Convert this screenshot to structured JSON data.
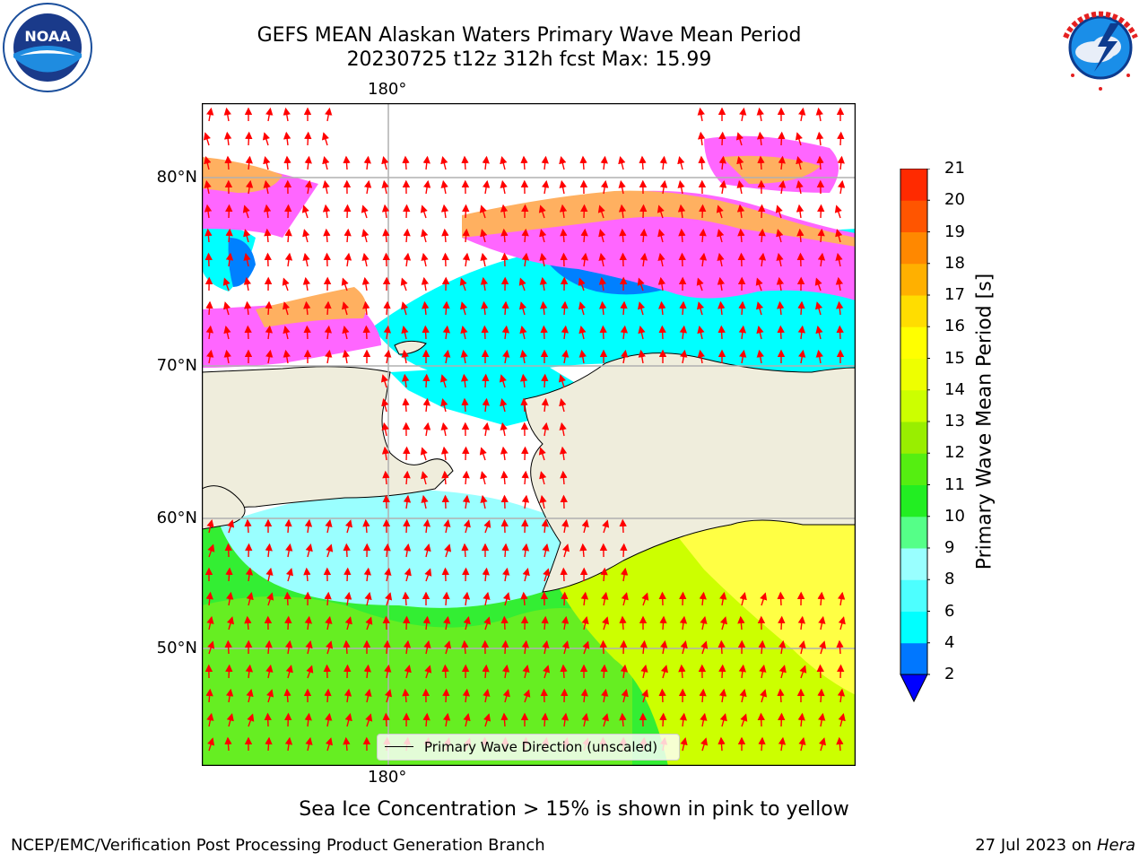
{
  "header": {
    "title_line1": "GEFS MEAN Alaskan Waters Primary Wave Mean Period",
    "title_line2": "20230725 t12z 312h fcst   Max: 15.99"
  },
  "map": {
    "x_tick_label": "180°",
    "y_tick_labels": [
      "80°N",
      "70°N",
      "60°N",
      "50°N"
    ],
    "legend_label": "Primary Wave Direction (unscaled)",
    "colors": {
      "land": "#efeddc",
      "ice_white": "#ffffff",
      "ice_pink": "#ff66ff",
      "ice_orange": "#ffb060",
      "cyan": "#00ffff",
      "light_cyan": "#9affff",
      "blue": "#0080ff",
      "green_light": "#4dff88",
      "green": "#33ee33",
      "yellow_green": "#ccff00",
      "yellow": "#ffff00",
      "arrow": "#ff0000",
      "grid": "#b0b0b0"
    }
  },
  "colorbar": {
    "label": "Primary Wave Mean Period [s]",
    "ticks": [
      "21",
      "20",
      "19",
      "18",
      "17",
      "16",
      "15",
      "14",
      "13",
      "12",
      "11",
      "10",
      "9",
      "8",
      "6",
      "4",
      "2"
    ],
    "levels": [
      2,
      4,
      6,
      8,
      9,
      10,
      11,
      12,
      13,
      14,
      15,
      16,
      17,
      18,
      19,
      20,
      21
    ],
    "colors": [
      "#0077ff",
      "#00ffff",
      "#4dffff",
      "#99ffff",
      "#55ff88",
      "#22ee22",
      "#55ee11",
      "#99ee00",
      "#ccff00",
      "#eeff00",
      "#ffff00",
      "#ffdd00",
      "#ffb000",
      "#ff8800",
      "#ff5500",
      "#ff2a00"
    ],
    "extend_color": "#0000ff"
  },
  "footer": {
    "ice_note": "Sea Ice Concentration > 15% is shown in pink to yellow",
    "left": "NCEP/EMC/Verification Post Processing Product Generation Branch",
    "right_date": "27 Jul 2023 on ",
    "right_host": "Hera"
  }
}
